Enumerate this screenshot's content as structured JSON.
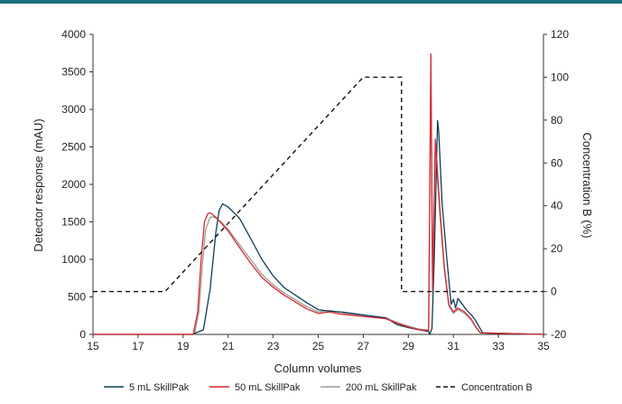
{
  "chart_data": {
    "type": "line",
    "title": "",
    "xlabel": "Column volumes",
    "ylabel": "Detector response (mAU)",
    "y2label": "Concentration B (%)",
    "xlim": [
      15,
      35
    ],
    "ylim": [
      0,
      4000
    ],
    "y2lim": [
      -20,
      120
    ],
    "xticks": [
      "15",
      "17",
      "19",
      "21",
      "23",
      "25",
      "27",
      "29",
      "31",
      "33",
      "35"
    ],
    "yticks": [
      "0",
      "500",
      "1000",
      "1500",
      "2000",
      "2500",
      "3000",
      "3500",
      "4000"
    ],
    "y2ticks": [
      "-20",
      "0",
      "20",
      "40",
      "60",
      "80",
      "100",
      "120"
    ],
    "grid": false,
    "legend_position": "bottom",
    "series": [
      {
        "name": "5 mL SkillPak",
        "color": "#0f3d57",
        "axis": "left",
        "x": [
          15,
          19.4,
          19.9,
          20.2,
          20.45,
          20.6,
          20.75,
          21.0,
          21.5,
          22.0,
          22.5,
          23.0,
          23.5,
          24.0,
          24.5,
          25.0,
          25.5,
          26.0,
          27.0,
          28.0,
          28.5,
          29.0,
          29.5,
          29.9,
          29.95,
          30.05,
          30.15,
          30.3,
          30.35,
          30.5,
          30.7,
          30.9,
          31.0,
          31.1,
          31.2,
          31.4,
          31.6,
          31.8,
          32.0,
          32.3,
          35
        ],
        "y": [
          0,
          0,
          60,
          600,
          1350,
          1650,
          1740,
          1700,
          1550,
          1280,
          1000,
          780,
          620,
          520,
          420,
          330,
          310,
          300,
          260,
          220,
          130,
          90,
          60,
          40,
          0,
          80,
          1000,
          2850,
          2700,
          1750,
          1050,
          400,
          470,
          350,
          480,
          400,
          320,
          260,
          180,
          20,
          0
        ]
      },
      {
        "name": "50 mL SkillPak",
        "color": "#d9272e",
        "axis": "left",
        "x": [
          15,
          19.45,
          19.65,
          19.8,
          19.95,
          20.1,
          20.2,
          20.3,
          20.5,
          21.0,
          21.5,
          22.0,
          22.5,
          23.0,
          23.5,
          24.0,
          24.5,
          25.0,
          25.5,
          26.0,
          27.0,
          28.0,
          28.5,
          29.0,
          29.5,
          29.9,
          30.0,
          30.08,
          30.2,
          30.4,
          30.6,
          30.8,
          31.0,
          31.2,
          31.5,
          31.8,
          32.0,
          32.2,
          35
        ],
        "y": [
          0,
          0,
          300,
          1000,
          1500,
          1610,
          1620,
          1600,
          1550,
          1380,
          1160,
          950,
          760,
          630,
          520,
          430,
          340,
          280,
          300,
          270,
          240,
          210,
          150,
          100,
          60,
          50,
          3740,
          600,
          2600,
          1700,
          900,
          400,
          300,
          350,
          300,
          200,
          100,
          20,
          0
        ]
      },
      {
        "name": "200 mL SkillPak",
        "color": "#9a9a9a",
        "axis": "left",
        "x": [
          15,
          19.5,
          19.7,
          19.85,
          20.0,
          20.2,
          20.3,
          20.45,
          20.7,
          21.0,
          21.5,
          22.0,
          22.5,
          23.0,
          23.5,
          24.0,
          24.5,
          25.0,
          25.5,
          26.0,
          27.0,
          28.0,
          28.5,
          29.0,
          29.5,
          29.9,
          30.0,
          30.08,
          30.2,
          30.4,
          30.6,
          30.8,
          31.0,
          31.2,
          31.5,
          31.8,
          32.0,
          32.2,
          35
        ],
        "y": [
          0,
          0,
          300,
          900,
          1400,
          1560,
          1570,
          1550,
          1500,
          1400,
          1200,
          1000,
          800,
          660,
          550,
          460,
          370,
          300,
          320,
          290,
          250,
          220,
          160,
          110,
          70,
          60,
          3600,
          550,
          2500,
          1600,
          850,
          380,
          280,
          330,
          280,
          190,
          90,
          20,
          0
        ]
      },
      {
        "name": "Concentration B",
        "color": "#111111",
        "dashed": true,
        "axis": "right",
        "x": [
          15,
          18.2,
          27.0,
          28.7,
          28.7,
          35
        ],
        "y": [
          0,
          0,
          100,
          100,
          0,
          0
        ]
      }
    ]
  }
}
